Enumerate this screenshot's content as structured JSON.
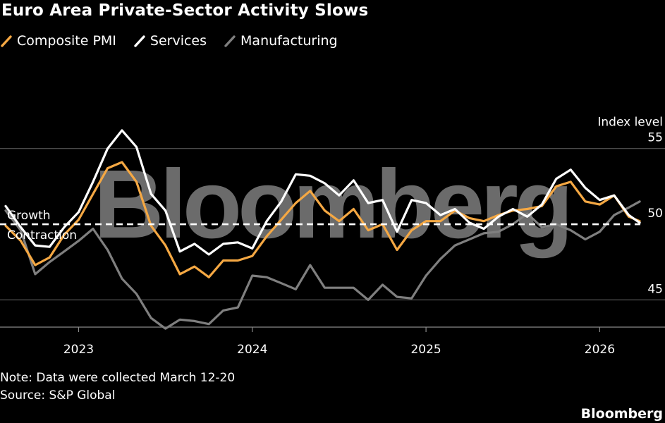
{
  "title": "Euro Area Private-Sector Activity Slows",
  "note": "Note: Data were collected March 12-20",
  "source": "Source: S&P Global",
  "brand": "Bloomberg",
  "watermark": "Bloomberg",
  "colors": {
    "composite": "#f5a843",
    "services": "#ffffff",
    "manufacturing": "#7f7f7f",
    "grid": "#555555"
  },
  "chart_data": {
    "type": "line",
    "title": "Euro Area Private-Sector Activity Slows",
    "ylabel": "Index level",
    "ylim": [
      43.2,
      57.5
    ],
    "yticks": [
      45,
      50,
      55
    ],
    "xlim": [
      2022.58,
      2026.25
    ],
    "xticks": [
      {
        "x": 2023,
        "label": "2023"
      },
      {
        "x": 2024,
        "label": "2024"
      },
      {
        "x": 2025,
        "label": "2025"
      },
      {
        "x": 2026,
        "label": "2026"
      }
    ],
    "reference_line": {
      "value": 50,
      "label_above": "Growth",
      "label_below": "Contraction"
    },
    "series": [
      {
        "name": "Composite PMI",
        "key": "composite",
        "x": [
          2022.58,
          2022.667,
          2022.75,
          2022.833,
          2022.917,
          2023.0,
          2023.083,
          2023.167,
          2023.25,
          2023.333,
          2023.417,
          2023.5,
          2023.583,
          2023.667,
          2023.75,
          2023.833,
          2023.917,
          2024.0,
          2024.083,
          2024.167,
          2024.25,
          2024.333,
          2024.417,
          2024.5,
          2024.583,
          2024.667,
          2024.75,
          2024.833,
          2024.917,
          2025.0,
          2025.083,
          2025.167,
          2025.25,
          2025.333,
          2025.417,
          2025.5,
          2025.583,
          2025.667,
          2025.75,
          2025.833,
          2025.917,
          2026.0,
          2026.083,
          2026.167,
          2026.23
        ],
        "values": [
          49.9,
          48.9,
          47.3,
          47.8,
          49.3,
          50.3,
          52.0,
          53.7,
          54.1,
          52.8,
          49.9,
          48.6,
          46.7,
          47.2,
          46.5,
          47.6,
          47.6,
          47.9,
          49.2,
          50.3,
          51.4,
          52.2,
          50.9,
          50.2,
          51.0,
          49.6,
          50.0,
          48.3,
          49.6,
          50.2,
          50.2,
          50.9,
          50.4,
          50.2,
          50.6,
          50.9,
          51.0,
          51.2,
          52.5,
          52.8,
          51.5,
          51.3,
          51.9,
          50.5,
          50.2
        ]
      },
      {
        "name": "Services",
        "key": "services",
        "x": [
          2022.58,
          2022.667,
          2022.75,
          2022.833,
          2022.917,
          2023.0,
          2023.083,
          2023.167,
          2023.25,
          2023.333,
          2023.417,
          2023.5,
          2023.583,
          2023.667,
          2023.75,
          2023.833,
          2023.917,
          2024.0,
          2024.083,
          2024.167,
          2024.25,
          2024.333,
          2024.417,
          2024.5,
          2024.583,
          2024.667,
          2024.75,
          2024.833,
          2024.917,
          2025.0,
          2025.083,
          2025.167,
          2025.25,
          2025.333,
          2025.417,
          2025.5,
          2025.583,
          2025.667,
          2025.75,
          2025.833,
          2025.917,
          2026.0,
          2026.083,
          2026.167,
          2026.23
        ],
        "values": [
          51.2,
          49.8,
          48.6,
          48.5,
          49.8,
          50.8,
          52.8,
          55.0,
          56.2,
          55.1,
          52.0,
          50.9,
          48.2,
          48.7,
          48.0,
          48.7,
          48.8,
          48.4,
          50.2,
          51.5,
          53.3,
          53.2,
          52.7,
          51.9,
          52.9,
          51.4,
          51.6,
          49.5,
          51.6,
          51.4,
          50.6,
          51.0,
          50.1,
          49.7,
          50.5,
          51.0,
          50.5,
          51.3,
          53.0,
          53.6,
          52.4,
          51.6,
          51.9,
          50.6,
          50.1
        ]
      },
      {
        "name": "Manufacturing",
        "key": "manufacturing",
        "x": [
          2022.58,
          2022.667,
          2022.75,
          2022.833,
          2022.917,
          2023.0,
          2023.083,
          2023.167,
          2023.25,
          2023.333,
          2023.417,
          2023.5,
          2023.583,
          2023.667,
          2023.75,
          2023.833,
          2023.917,
          2024.0,
          2024.083,
          2024.167,
          2024.25,
          2024.333,
          2024.417,
          2024.5,
          2024.583,
          2024.667,
          2024.75,
          2024.833,
          2024.917,
          2025.0,
          2025.083,
          2025.167,
          2025.25,
          2025.333,
          2025.417,
          2025.5,
          2025.583,
          2025.667,
          2025.75,
          2025.833,
          2025.917,
          2026.0,
          2026.083,
          2026.167,
          2026.23
        ],
        "values": [
          50.9,
          49.6,
          46.7,
          47.5,
          48.2,
          48.9,
          49.7,
          48.3,
          46.4,
          45.4,
          43.8,
          43.1,
          43.7,
          43.6,
          43.4,
          44.3,
          44.5,
          46.6,
          46.5,
          46.1,
          45.7,
          47.3,
          45.8,
          45.8,
          45.8,
          45.0,
          46.0,
          45.2,
          45.1,
          46.6,
          47.7,
          48.6,
          49.0,
          49.4,
          49.5,
          50.0,
          50.7,
          49.8,
          50.0,
          49.6,
          49.0,
          49.5,
          50.6,
          51.1,
          51.5
        ]
      }
    ]
  }
}
